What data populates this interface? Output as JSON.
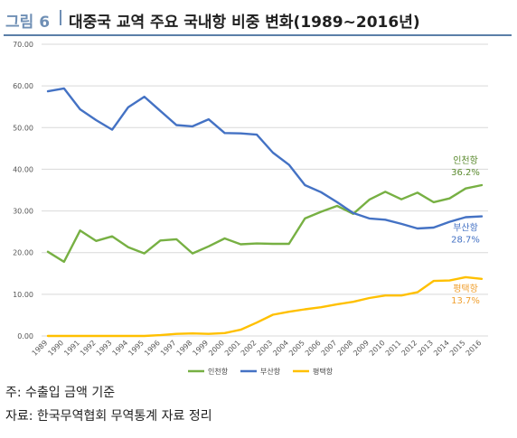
{
  "header": {
    "prefix": "그림 6",
    "title": "대중국 교역 주요 국내항 비중 변화(1989~2016년)"
  },
  "chart_data": {
    "type": "line",
    "title": "",
    "xlabel": "",
    "ylabel": "",
    "x": [
      "1989",
      "1990",
      "1991",
      "1992",
      "1993",
      "1994",
      "1995",
      "1996",
      "1997",
      "1998",
      "1999",
      "2000",
      "2001",
      "2002",
      "2003",
      "2004",
      "2005",
      "2006",
      "2007",
      "2008",
      "2009",
      "2010",
      "2011",
      "2012",
      "2013",
      "2014",
      "2015",
      "2016"
    ],
    "ylim": [
      0,
      70
    ],
    "yticks": [
      "0.00",
      "10.00",
      "20.00",
      "30.00",
      "40.00",
      "50.00",
      "60.00",
      "70.00"
    ],
    "grid": true,
    "legend_position": "bottom",
    "series": [
      {
        "name": "인천항",
        "color": "#77b043",
        "label": "인천항",
        "value_label": "36.2%",
        "values": [
          20.2,
          17.8,
          25.3,
          22.8,
          23.9,
          21.3,
          19.8,
          22.9,
          23.2,
          19.8,
          21.5,
          23.4,
          22.0,
          22.2,
          22.1,
          22.1,
          28.2,
          29.8,
          31.2,
          29.3,
          32.7,
          34.6,
          32.8,
          34.4,
          32.1,
          33.0,
          35.4,
          36.2
        ]
      },
      {
        "name": "부산항",
        "color": "#4472c4",
        "label": "부산항",
        "value_label": "28.7%",
        "values": [
          58.7,
          59.4,
          54.4,
          51.8,
          49.5,
          54.9,
          57.4,
          54.0,
          50.6,
          50.3,
          52.0,
          48.7,
          48.6,
          48.3,
          44.0,
          41.1,
          36.2,
          34.5,
          32.1,
          29.5,
          28.2,
          27.9,
          26.9,
          25.8,
          26.0,
          27.4,
          28.5,
          28.7
        ]
      },
      {
        "name": "평택항",
        "color": "#ffc000",
        "label": "평택항",
        "value_label": "13.7%",
        "values": [
          0,
          0,
          0,
          0,
          0,
          0,
          0,
          0.2,
          0.5,
          0.6,
          0.5,
          0.7,
          1.5,
          3.2,
          5.1,
          5.8,
          6.4,
          6.9,
          7.6,
          8.2,
          9.1,
          9.7,
          9.7,
          10.5,
          13.2,
          13.3,
          14.1,
          13.7
        ]
      }
    ]
  },
  "notes": {
    "line1": "주: 수출입 금액 기준",
    "line2": "자료: 한국무역협회 무역통계 자료 정리"
  }
}
